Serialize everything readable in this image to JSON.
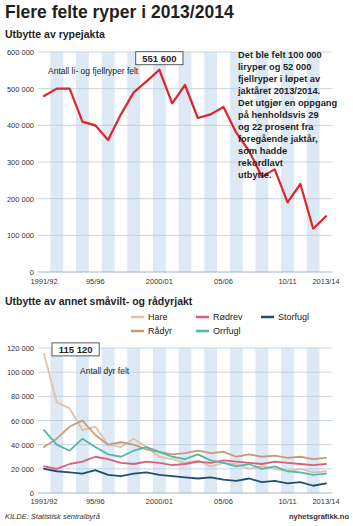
{
  "title": "Flere felte ryper i 2013/2014",
  "source": "KILDE: Statistisk sentralbyrå",
  "credit": "nyhetsgrafikk.no",
  "chart_data": [
    {
      "type": "line",
      "title": "Utbytte av rypejakta",
      "y_label": "Antall li- og fjellryper felt",
      "note": [
        "Det ble felt 100 000",
        "liryper og 52 000",
        "fjellryper i løpet av",
        "jaktåret 2013/2014.",
        "Det utgjør en oppgang",
        "på henholdsvis 29",
        "og 22 prosent fra",
        "foregående jaktår,",
        "som hadde",
        "rekordlavt",
        "utbytte."
      ],
      "annotations": [
        {
          "text": "551 600"
        }
      ],
      "categories": [
        "1991/92",
        null,
        null,
        null,
        "95/96",
        null,
        null,
        null,
        null,
        "2000/01",
        null,
        null,
        null,
        null,
        "05/06",
        null,
        null,
        null,
        null,
        "10/11",
        null,
        null,
        "2013/14"
      ],
      "values": [
        480000,
        500000,
        500000,
        410000,
        400000,
        360000,
        430000,
        490000,
        520000,
        551600,
        460000,
        510000,
        420000,
        430000,
        450000,
        380000,
        330000,
        260000,
        280000,
        190000,
        240000,
        118000,
        152000
      ],
      "color": "#e0242b",
      "ylim": [
        0,
        600000
      ],
      "yticks": [
        0,
        {
          "value": 100000,
          "label": "100 000"
        },
        {
          "value": 200000,
          "label": "200 000"
        },
        {
          "value": 300000,
          "label": "300 000"
        },
        {
          "value": 400000,
          "label": "400 000"
        },
        {
          "value": 500000,
          "label": "500 000"
        },
        {
          "value": 600000,
          "label": "600 000"
        }
      ],
      "grid": true
    },
    {
      "type": "line",
      "title": "Utbytte av annet småvilt- og rådyrjakt",
      "y_label": "Antall dyr felt",
      "annotations": [
        {
          "text": "115 120",
          "series": "Hare"
        }
      ],
      "categories": [
        "1991/92",
        null,
        null,
        null,
        "95/96",
        null,
        null,
        null,
        null,
        "2000/01",
        null,
        null,
        null,
        null,
        "05/06",
        null,
        null,
        null,
        null,
        "10/11",
        null,
        null,
        "2013/14"
      ],
      "series": [
        {
          "name": "Hare",
          "color": "#dfc2ae",
          "values": [
            115120,
            75000,
            70000,
            52000,
            55000,
            40000,
            38000,
            45000,
            38000,
            30000,
            28000,
            25000,
            27000,
            22000,
            25000,
            24000,
            20000,
            22000,
            20000,
            18000,
            20000,
            17000,
            18000
          ]
        },
        {
          "name": "Rødrev",
          "color": "#d9607a",
          "values": [
            22000,
            20000,
            24000,
            26000,
            30000,
            28000,
            25000,
            24000,
            26000,
            25000,
            23000,
            24000,
            26000,
            25000,
            27000,
            26000,
            25000,
            24000,
            26000,
            25000,
            24000,
            23000,
            24000
          ]
        },
        {
          "name": "Storfugl",
          "color": "#1d4f73",
          "values": [
            20000,
            18000,
            17000,
            16000,
            19000,
            15000,
            14000,
            16000,
            17000,
            15000,
            14000,
            13000,
            12000,
            13000,
            11000,
            10000,
            12000,
            9000,
            10000,
            8000,
            9000,
            6000,
            8000
          ]
        },
        {
          "name": "Rådyr",
          "color": "#c99a78",
          "values": [
            38000,
            45000,
            55000,
            60000,
            48000,
            40000,
            42000,
            40000,
            36000,
            34000,
            32000,
            33000,
            35000,
            33000,
            34000,
            30000,
            32000,
            30000,
            31000,
            29000,
            30000,
            28000,
            29000
          ]
        },
        {
          "name": "Orrfugl",
          "color": "#4fb8a8",
          "values": [
            52000,
            40000,
            35000,
            45000,
            38000,
            32000,
            30000,
            35000,
            38000,
            34000,
            30000,
            28000,
            32000,
            27000,
            25000,
            22000,
            24000,
            20000,
            22000,
            18000,
            17000,
            15000,
            16000
          ]
        }
      ],
      "ylim": [
        0,
        120000
      ],
      "yticks": [
        0,
        {
          "value": 20000,
          "label": "20 000"
        },
        {
          "value": 40000,
          "label": "40 000"
        },
        {
          "value": 60000,
          "label": "60 000"
        },
        {
          "value": 80000,
          "label": "80 000"
        },
        {
          "value": 100000,
          "label": "100 000"
        },
        {
          "value": 120000,
          "label": "120 000"
        }
      ],
      "grid": true,
      "legend": "top-right"
    }
  ]
}
